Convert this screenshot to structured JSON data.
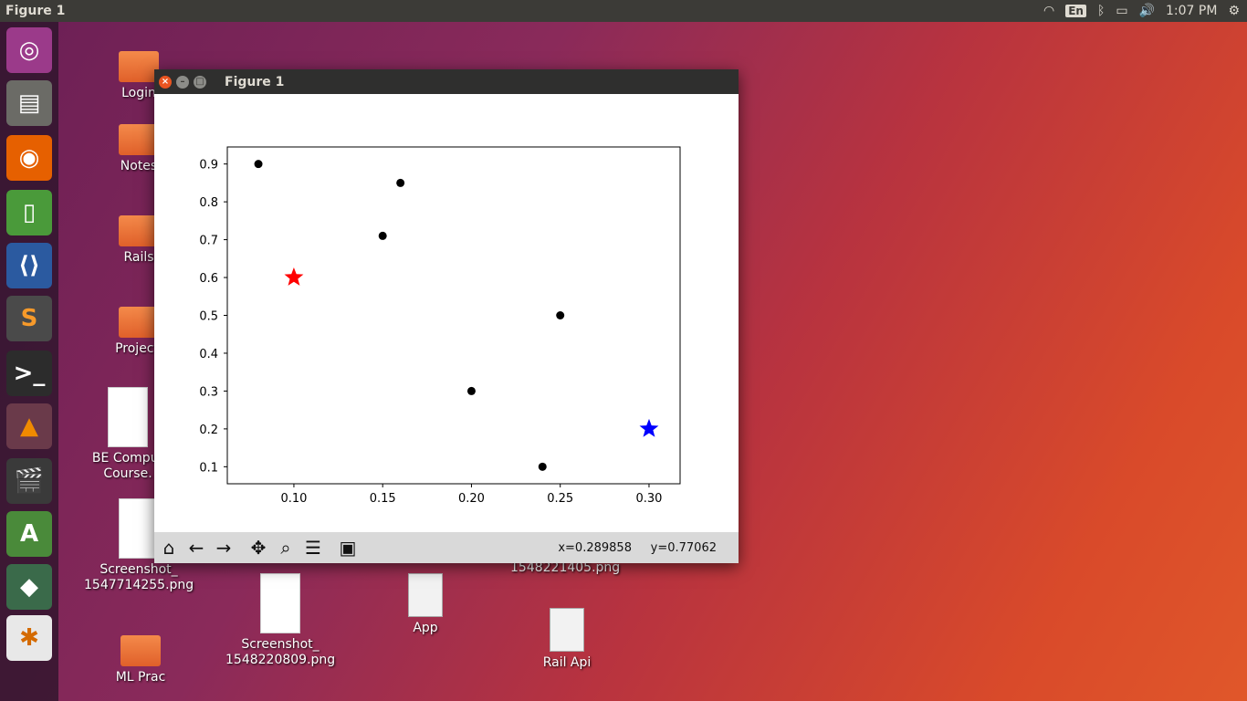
{
  "topbar": {
    "title": "Figure 1",
    "lang": "En",
    "time": "1:07 PM"
  },
  "desktop_icons": [
    {
      "label": "Login",
      "kind": "folder"
    },
    {
      "label": "Notes",
      "kind": "folder"
    },
    {
      "label": "Rails",
      "kind": "folder"
    },
    {
      "label": "Projecti",
      "kind": "folder"
    },
    {
      "label": "BE Comput Course.",
      "kind": "doc"
    },
    {
      "label": "Screenshot_ 1547714255.png",
      "kind": "image"
    },
    {
      "label": "ML Prac",
      "kind": "folder"
    },
    {
      "label": "Screenshot_ 1548220809.png",
      "kind": "image"
    },
    {
      "label": "App",
      "kind": "file"
    },
    {
      "label": "1548221405.png",
      "kind": "image"
    },
    {
      "label": "Rail Api",
      "kind": "file"
    }
  ],
  "window": {
    "title": "Figure 1",
    "coords_x": "x=0.289858",
    "coords_y": "y=0.77062"
  },
  "chart_data": {
    "type": "scatter",
    "title": "",
    "xlabel": "",
    "ylabel": "",
    "xlim": [
      0.0625,
      0.3175
    ],
    "ylim": [
      0.055,
      0.945
    ],
    "xticks": [
      "0.10",
      "0.15",
      "0.20",
      "0.25",
      "0.30"
    ],
    "yticks": [
      "0.1",
      "0.2",
      "0.3",
      "0.4",
      "0.5",
      "0.6",
      "0.7",
      "0.8",
      "0.9"
    ],
    "series": [
      {
        "marker": "circle",
        "color": "#000000",
        "points": [
          [
            0.08,
            0.9
          ],
          [
            0.16,
            0.85
          ],
          [
            0.15,
            0.71
          ],
          [
            0.25,
            0.5
          ],
          [
            0.2,
            0.3
          ],
          [
            0.24,
            0.1
          ]
        ]
      },
      {
        "marker": "star",
        "color": "#ff0000",
        "points": [
          [
            0.1,
            0.6
          ]
        ]
      },
      {
        "marker": "star",
        "color": "#0000ff",
        "points": [
          [
            0.3,
            0.2
          ]
        ]
      }
    ]
  }
}
